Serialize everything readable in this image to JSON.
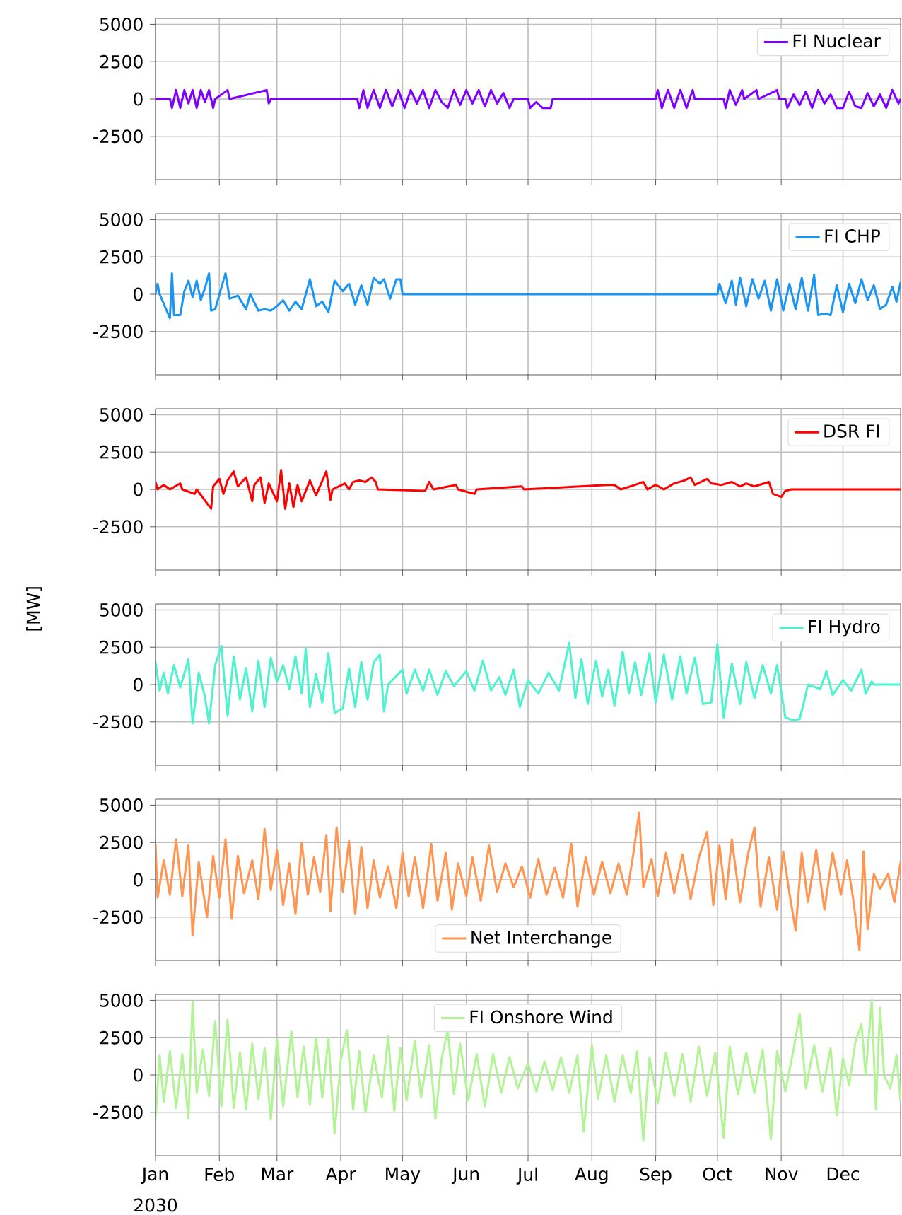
{
  "chart_data": [
    {
      "type": "line",
      "xlim": [
        "2030-01-01",
        "2030-12-29"
      ],
      "ylim": [
        -5400,
        5400
      ],
      "yticks": [
        -2500,
        0,
        2500,
        5000
      ],
      "grid": true,
      "legend": "top right",
      "tick_labels": "y",
      "xticks": [
        "2030-01-01",
        "2030-02-01",
        "2030-03-01",
        "2030-04-01",
        "2030-05-01",
        "2030-06-01",
        "2030-07-01",
        "2030-08-01",
        "2030-09-01",
        "2030-10-01",
        "2030-11-01",
        "2030-12-01"
      ],
      "series": [
        {
          "name": "FI Nuclear",
          "color": "#8000ff",
          "x": [
            "2030-01-01",
            "2030-01-08",
            "2030-01-09",
            "2030-01-11",
            "2030-01-13",
            "2030-01-15",
            "2030-01-17",
            "2030-01-19",
            "2030-01-21",
            "2030-01-23",
            "2030-01-25",
            "2030-01-27",
            "2030-01-29",
            "2030-01-30",
            "2030-02-05",
            "2030-02-06",
            "2030-02-24",
            "2030-02-25",
            "2030-02-26",
            "2030-04-09",
            "2030-04-10",
            "2030-04-12",
            "2030-04-14",
            "2030-04-17",
            "2030-04-20",
            "2030-04-23",
            "2030-04-26",
            "2030-04-29",
            "2030-05-02",
            "2030-05-05",
            "2030-05-08",
            "2030-05-11",
            "2030-05-14",
            "2030-05-17",
            "2030-05-20",
            "2030-05-23",
            "2030-05-26",
            "2030-05-29",
            "2030-06-01",
            "2030-06-04",
            "2030-06-07",
            "2030-06-10",
            "2030-06-13",
            "2030-06-16",
            "2030-06-19",
            "2030-06-22",
            "2030-06-24",
            "2030-07-01",
            "2030-07-02",
            "2030-07-05",
            "2030-07-08",
            "2030-07-12",
            "2030-07-13",
            "2030-09-01",
            "2030-09-02",
            "2030-09-04",
            "2030-09-07",
            "2030-09-10",
            "2030-09-13",
            "2030-09-16",
            "2030-09-19",
            "2030-09-20",
            "2030-10-04",
            "2030-10-05",
            "2030-10-07",
            "2030-10-10",
            "2030-10-13",
            "2030-10-14",
            "2030-10-20",
            "2030-10-21",
            "2030-10-30",
            "2030-10-31",
            "2030-11-03",
            "2030-11-04",
            "2030-11-07",
            "2030-11-10",
            "2030-11-13",
            "2030-11-16",
            "2030-11-19",
            "2030-11-22",
            "2030-11-25",
            "2030-11-28",
            "2030-12-01",
            "2030-12-04",
            "2030-12-07",
            "2030-12-10",
            "2030-12-13",
            "2030-12-16",
            "2030-12-19",
            "2030-12-22",
            "2030-12-25",
            "2030-12-28",
            "2030-12-29"
          ],
          "values": [
            0,
            0,
            -600,
            600,
            -600,
            600,
            -300,
            600,
            -600,
            600,
            -200,
            600,
            -600,
            0,
            600,
            0,
            600,
            -300,
            0,
            0,
            -600,
            600,
            -600,
            600,
            -600,
            600,
            -500,
            600,
            -600,
            600,
            -300,
            600,
            -600,
            600,
            -200,
            -600,
            600,
            -400,
            600,
            -300,
            600,
            -500,
            600,
            -300,
            400,
            -600,
            0,
            0,
            -600,
            -200,
            -600,
            -600,
            0,
            0,
            600,
            -600,
            600,
            -600,
            600,
            -600,
            600,
            0,
            0,
            -600,
            600,
            -400,
            600,
            0,
            600,
            0,
            600,
            0,
            0,
            -600,
            300,
            -400,
            500,
            -600,
            600,
            -300,
            300,
            -600,
            -600,
            500,
            -500,
            -600,
            400,
            -500,
            300,
            -600,
            600,
            -300,
            0
          ]
        }
      ]
    },
    {
      "type": "line",
      "xlim": [
        "2030-01-01",
        "2030-12-29"
      ],
      "ylim": [
        -5400,
        5400
      ],
      "yticks": [
        -2500,
        0,
        2500,
        5000
      ],
      "grid": true,
      "legend": "top right",
      "tick_labels": "y",
      "xticks": [
        "2030-01-01",
        "2030-02-01",
        "2030-03-01",
        "2030-04-01",
        "2030-05-01",
        "2030-06-01",
        "2030-07-01",
        "2030-08-01",
        "2030-09-01",
        "2030-10-01",
        "2030-11-01",
        "2030-12-01"
      ],
      "series": [
        {
          "name": "FI CHP",
          "color": "#1996f3",
          "x": [
            "2030-01-01",
            "2030-01-02",
            "2030-01-03",
            "2030-01-08",
            "2030-01-09",
            "2030-01-10",
            "2030-01-13",
            "2030-01-15",
            "2030-01-17",
            "2030-01-19",
            "2030-01-21",
            "2030-01-23",
            "2030-01-25",
            "2030-01-27",
            "2030-01-28",
            "2030-01-30",
            "2030-02-04",
            "2030-02-06",
            "2030-02-10",
            "2030-02-14",
            "2030-02-16",
            "2030-02-20",
            "2030-02-23",
            "2030-02-26",
            "2030-03-01",
            "2030-03-04",
            "2030-03-07",
            "2030-03-10",
            "2030-03-13",
            "2030-03-17",
            "2030-03-20",
            "2030-03-23",
            "2030-03-26",
            "2030-03-29",
            "2030-04-02",
            "2030-04-05",
            "2030-04-08",
            "2030-04-11",
            "2030-04-14",
            "2030-04-17",
            "2030-04-20",
            "2030-04-22",
            "2030-04-25",
            "2030-04-28",
            "2030-04-30",
            "2030-05-01",
            "2030-10-01",
            "2030-10-02",
            "2030-10-05",
            "2030-10-08",
            "2030-10-10",
            "2030-10-12",
            "2030-10-15",
            "2030-10-18",
            "2030-10-21",
            "2030-10-24",
            "2030-10-27",
            "2030-10-30",
            "2030-11-02",
            "2030-11-05",
            "2030-11-08",
            "2030-11-11",
            "2030-11-14",
            "2030-11-17",
            "2030-11-19",
            "2030-11-22",
            "2030-11-25",
            "2030-11-28",
            "2030-12-01",
            "2030-12-04",
            "2030-12-07",
            "2030-12-10",
            "2030-12-13",
            "2030-12-16",
            "2030-12-19",
            "2030-12-22",
            "2030-12-25",
            "2030-12-27",
            "2030-12-29"
          ],
          "values": [
            0,
            700,
            0,
            -1600,
            1400,
            -1400,
            -1400,
            200,
            900,
            -200,
            900,
            -400,
            400,
            1400,
            -1100,
            -1000,
            1400,
            -300,
            -100,
            -1000,
            0,
            -1100,
            -1000,
            -1100,
            -800,
            -400,
            -1100,
            -500,
            -1000,
            1000,
            -800,
            -500,
            -1200,
            900,
            200,
            700,
            -700,
            600,
            -700,
            1100,
            700,
            1000,
            -300,
            1000,
            1000,
            0,
            0,
            700,
            -600,
            900,
            -700,
            1100,
            -800,
            1000,
            -300,
            900,
            -1100,
            1000,
            -1100,
            700,
            -1000,
            1100,
            -1100,
            1300,
            -1400,
            -1300,
            -1400,
            600,
            -1200,
            700,
            -600,
            1000,
            -400,
            600,
            -1000,
            -700,
            500,
            -500,
            800
          ]
        }
      ]
    },
    {
      "type": "line",
      "xlim": [
        "2030-01-01",
        "2030-12-29"
      ],
      "ylim": [
        -5400,
        5400
      ],
      "yticks": [
        -2500,
        0,
        2500,
        5000
      ],
      "grid": true,
      "legend": "top right",
      "tick_labels": "y",
      "xticks": [
        "2030-01-01",
        "2030-02-01",
        "2030-03-01",
        "2030-04-01",
        "2030-05-01",
        "2030-06-01",
        "2030-07-01",
        "2030-08-01",
        "2030-09-01",
        "2030-10-01",
        "2030-11-01",
        "2030-12-01"
      ],
      "series": [
        {
          "name": "DSR FI",
          "color": "#ff0000",
          "x": [
            "2030-01-01",
            "2030-01-02",
            "2030-01-05",
            "2030-01-08",
            "2030-01-13",
            "2030-01-14",
            "2030-01-20",
            "2030-01-21",
            "2030-01-28",
            "2030-01-29",
            "2030-02-01",
            "2030-02-03",
            "2030-02-05",
            "2030-02-08",
            "2030-02-10",
            "2030-02-14",
            "2030-02-17",
            "2030-02-18",
            "2030-02-21",
            "2030-02-23",
            "2030-02-25",
            "2030-03-01",
            "2030-03-03",
            "2030-03-05",
            "2030-03-07",
            "2030-03-09",
            "2030-03-11",
            "2030-03-13",
            "2030-03-17",
            "2030-03-20",
            "2030-03-25",
            "2030-03-27",
            "2030-03-28",
            "2030-04-03",
            "2030-04-05",
            "2030-04-07",
            "2030-04-10",
            "2030-04-13",
            "2030-04-16",
            "2030-04-18",
            "2030-04-19",
            "2030-05-12",
            "2030-05-14",
            "2030-05-16",
            "2030-05-27",
            "2030-05-28",
            "2030-06-05",
            "2030-06-06",
            "2030-06-28",
            "2030-06-29",
            "2030-08-08",
            "2030-08-12",
            "2030-08-15",
            "2030-08-22",
            "2030-08-26",
            "2030-08-28",
            "2030-09-01",
            "2030-09-05",
            "2030-09-10",
            "2030-09-15",
            "2030-09-18",
            "2030-09-20",
            "2030-09-26",
            "2030-09-28",
            "2030-10-03",
            "2030-10-08",
            "2030-10-12",
            "2030-10-15",
            "2030-10-19",
            "2030-10-26",
            "2030-10-28",
            "2030-11-01",
            "2030-11-03",
            "2030-11-06",
            "2030-12-29"
          ],
          "values": [
            500,
            0,
            300,
            0,
            400,
            0,
            -300,
            0,
            -1300,
            200,
            700,
            -300,
            600,
            1200,
            200,
            800,
            -800,
            300,
            800,
            -900,
            400,
            -800,
            1300,
            -1300,
            400,
            -1200,
            300,
            -800,
            600,
            -400,
            1200,
            -700,
            0,
            400,
            0,
            500,
            600,
            500,
            800,
            500,
            0,
            -100,
            500,
            0,
            300,
            0,
            -300,
            0,
            200,
            0,
            300,
            300,
            0,
            300,
            500,
            0,
            300,
            0,
            400,
            600,
            800,
            300,
            700,
            400,
            300,
            500,
            200,
            400,
            200,
            500,
            -300,
            -500,
            -100,
            0,
            0
          ]
        }
      ]
    },
    {
      "type": "line",
      "xlim": [
        "2030-01-01",
        "2030-12-29"
      ],
      "ylim": [
        -5400,
        5400
      ],
      "yticks": [
        -2500,
        0,
        2500,
        5000
      ],
      "grid": true,
      "legend": "top right",
      "tick_labels": "y",
      "ylabel": "[MW]",
      "xticks": [
        "2030-01-01",
        "2030-02-01",
        "2030-03-01",
        "2030-04-01",
        "2030-05-01",
        "2030-06-01",
        "2030-07-01",
        "2030-08-01",
        "2030-09-01",
        "2030-10-01",
        "2030-11-01",
        "2030-12-01"
      ],
      "series": [
        {
          "name": "FI Hydro",
          "color": "#4df3ce",
          "x": [
            "2030-01-01",
            "2030-01-03",
            "2030-01-05",
            "2030-01-07",
            "2030-01-10",
            "2030-01-13",
            "2030-01-17",
            "2030-01-19",
            "2030-01-22",
            "2030-01-25",
            "2030-01-27",
            "2030-01-30",
            "2030-02-02",
            "2030-02-05",
            "2030-02-08",
            "2030-02-11",
            "2030-02-14",
            "2030-02-17",
            "2030-02-20",
            "2030-02-23",
            "2030-02-26",
            "2030-03-01",
            "2030-03-04",
            "2030-03-07",
            "2030-03-10",
            "2030-03-13",
            "2030-03-15",
            "2030-03-17",
            "2030-03-20",
            "2030-03-23",
            "2030-03-26",
            "2030-03-29",
            "2030-04-02",
            "2030-04-05",
            "2030-04-08",
            "2030-04-11",
            "2030-04-14",
            "2030-04-17",
            "2030-04-20",
            "2030-04-22",
            "2030-04-24",
            "2030-05-01",
            "2030-05-03",
            "2030-05-07",
            "2030-05-11",
            "2030-05-14",
            "2030-05-18",
            "2030-05-22",
            "2030-05-26",
            "2030-06-01",
            "2030-06-05",
            "2030-06-09",
            "2030-06-13",
            "2030-06-17",
            "2030-06-20",
            "2030-06-24",
            "2030-06-27",
            "2030-07-01",
            "2030-07-06",
            "2030-07-11",
            "2030-07-16",
            "2030-07-21",
            "2030-07-24",
            "2030-07-27",
            "2030-07-30",
            "2030-08-03",
            "2030-08-06",
            "2030-08-09",
            "2030-08-12",
            "2030-08-16",
            "2030-08-19",
            "2030-08-22",
            "2030-08-25",
            "2030-08-29",
            "2030-09-01",
            "2030-09-05",
            "2030-09-09",
            "2030-09-13",
            "2030-09-16",
            "2030-09-20",
            "2030-09-24",
            "2030-09-28",
            "2030-10-01",
            "2030-10-04",
            "2030-10-08",
            "2030-10-12",
            "2030-10-15",
            "2030-10-19",
            "2030-10-23",
            "2030-10-27",
            "2030-10-30",
            "2030-11-03",
            "2030-11-07",
            "2030-11-10",
            "2030-11-12",
            "2030-11-14",
            "2030-11-20",
            "2030-11-23",
            "2030-11-26",
            "2030-12-01",
            "2030-12-05",
            "2030-12-10",
            "2030-12-12",
            "2030-12-15",
            "2030-12-16",
            "2030-12-29"
          ],
          "values": [
            1500,
            -400,
            800,
            -600,
            1300,
            -200,
            1700,
            -2600,
            800,
            -800,
            -2600,
            1300,
            2600,
            -2100,
            1900,
            -1000,
            1100,
            -1800,
            1600,
            -1500,
            1800,
            200,
            1300,
            -300,
            1900,
            -600,
            2400,
            -1500,
            700,
            -1200,
            2100,
            -1900,
            -1600,
            1100,
            -1500,
            1500,
            -1000,
            1500,
            2000,
            -1800,
            0,
            1000,
            -600,
            1000,
            -400,
            1000,
            -700,
            900,
            -100,
            900,
            -400,
            1600,
            -400,
            500,
            -700,
            1000,
            -1500,
            300,
            -600,
            800,
            -400,
            2800,
            -900,
            1700,
            -1300,
            1600,
            -800,
            1000,
            -1400,
            2200,
            -600,
            1500,
            -700,
            2100,
            -1200,
            2000,
            -1000,
            1900,
            -600,
            1800,
            -1300,
            -1200,
            2700,
            -2200,
            1400,
            -1300,
            1500,
            -900,
            1300,
            -600,
            1300,
            -2200,
            -2400,
            -2300,
            -1200,
            0,
            -300,
            900,
            -700,
            300,
            -400,
            1000,
            -600,
            200,
            0,
            0
          ]
        }
      ]
    },
    {
      "type": "line",
      "xlim": [
        "2030-01-01",
        "2030-12-29"
      ],
      "ylim": [
        -5400,
        5400
      ],
      "yticks": [
        -2500,
        0,
        2500,
        5000
      ],
      "grid": true,
      "legend": "bottom",
      "tick_labels": "y",
      "xticks": [
        "2030-01-01",
        "2030-02-01",
        "2030-03-01",
        "2030-04-01",
        "2030-05-01",
        "2030-06-01",
        "2030-07-01",
        "2030-08-01",
        "2030-09-01",
        "2030-10-01",
        "2030-11-01",
        "2030-12-01"
      ],
      "series": [
        {
          "name": "Net Interchange",
          "color": "#ff9550",
          "x": [
            "2030-01-01",
            "2030-01-02",
            "2030-01-05",
            "2030-01-08",
            "2030-01-11",
            "2030-01-14",
            "2030-01-17",
            "2030-01-19",
            "2030-01-22",
            "2030-01-26",
            "2030-01-29",
            "2030-02-01",
            "2030-02-04",
            "2030-02-07",
            "2030-02-10",
            "2030-02-13",
            "2030-02-17",
            "2030-02-20",
            "2030-02-23",
            "2030-02-26",
            "2030-03-01",
            "2030-03-04",
            "2030-03-07",
            "2030-03-10",
            "2030-03-13",
            "2030-03-16",
            "2030-03-19",
            "2030-03-22",
            "2030-03-25",
            "2030-03-27",
            "2030-03-30",
            "2030-04-02",
            "2030-04-05",
            "2030-04-08",
            "2030-04-11",
            "2030-04-14",
            "2030-04-17",
            "2030-04-20",
            "2030-04-24",
            "2030-04-28",
            "2030-05-01",
            "2030-05-04",
            "2030-05-07",
            "2030-05-11",
            "2030-05-15",
            "2030-05-18",
            "2030-05-22",
            "2030-05-25",
            "2030-05-28",
            "2030-06-01",
            "2030-06-04",
            "2030-06-08",
            "2030-06-12",
            "2030-06-16",
            "2030-06-20",
            "2030-06-24",
            "2030-06-28",
            "2030-07-02",
            "2030-07-06",
            "2030-07-10",
            "2030-07-14",
            "2030-07-18",
            "2030-07-22",
            "2030-07-25",
            "2030-07-29",
            "2030-08-02",
            "2030-08-06",
            "2030-08-10",
            "2030-08-14",
            "2030-08-18",
            "2030-08-21",
            "2030-08-24",
            "2030-08-26",
            "2030-08-30",
            "2030-09-02",
            "2030-09-06",
            "2030-09-10",
            "2030-09-14",
            "2030-09-18",
            "2030-09-22",
            "2030-09-26",
            "2030-09-29",
            "2030-10-02",
            "2030-10-05",
            "2030-10-08",
            "2030-10-12",
            "2030-10-16",
            "2030-10-19",
            "2030-10-22",
            "2030-10-26",
            "2030-10-30",
            "2030-11-02",
            "2030-11-05",
            "2030-11-08",
            "2030-11-11",
            "2030-11-14",
            "2030-11-18",
            "2030-11-22",
            "2030-11-26",
            "2030-11-30",
            "2030-12-03",
            "2030-12-06",
            "2030-12-09",
            "2030-12-11",
            "2030-12-13",
            "2030-12-16",
            "2030-12-19",
            "2030-12-23",
            "2030-12-26",
            "2030-12-29"
          ],
          "values": [
            2400,
            -1200,
            1300,
            -1000,
            2700,
            -1100,
            2300,
            -3700,
            1200,
            -2500,
            1600,
            -1200,
            2700,
            -2600,
            1600,
            -900,
            1300,
            -1300,
            3400,
            -700,
            2000,
            -1700,
            1100,
            -2300,
            2500,
            -1000,
            1500,
            -800,
            3000,
            -2100,
            3500,
            -800,
            2600,
            -2300,
            2200,
            -1900,
            1300,
            -1200,
            900,
            -1900,
            1800,
            -1100,
            1500,
            -1900,
            2400,
            -1400,
            1800,
            -2000,
            1100,
            -1100,
            1500,
            -1400,
            2300,
            -800,
            1100,
            -500,
            900,
            -1200,
            1400,
            -1000,
            800,
            -1200,
            2400,
            -1800,
            1500,
            -1000,
            1200,
            -900,
            1100,
            -1000,
            1600,
            4500,
            -500,
            1400,
            -1100,
            1800,
            -900,
            1700,
            -1300,
            1500,
            3200,
            -1700,
            2300,
            -1300,
            2700,
            -1500,
            1800,
            3500,
            -1800,
            1500,
            -2000,
            1900,
            -900,
            -3400,
            1800,
            -1500,
            2000,
            -2000,
            1800,
            -1000,
            1300,
            -1300,
            -4700,
            1900,
            -3300,
            400,
            -600,
            400,
            -1500,
            1200
          ]
        }
      ]
    },
    {
      "type": "line",
      "xlim": [
        "2030-01-01",
        "2030-12-29"
      ],
      "ylim": [
        -5400,
        5400
      ],
      "yticks": [
        -2500,
        0,
        2500,
        5000
      ],
      "grid": true,
      "legend": "top",
      "annotations": [
        "2030"
      ],
      "xticks": [
        {
          "value": "2030-01-01",
          "label": "Jan"
        },
        {
          "value": "2030-02-01",
          "label": "Feb"
        },
        {
          "value": "2030-03-01",
          "label": "Mar"
        },
        {
          "value": "2030-04-01",
          "label": "Apr"
        },
        {
          "value": "2030-05-01",
          "label": "May"
        },
        {
          "value": "2030-06-01",
          "label": "Jun"
        },
        {
          "value": "2030-07-01",
          "label": "Jul"
        },
        {
          "value": "2030-08-01",
          "label": "Aug"
        },
        {
          "value": "2030-09-01",
          "label": "Sep"
        },
        {
          "value": "2030-10-01",
          "label": "Oct"
        },
        {
          "value": "2030-11-01",
          "label": "Nov"
        },
        {
          "value": "2030-12-01",
          "label": "Dec"
        }
      ],
      "series": [
        {
          "name": "FI Onshore Wind",
          "color": "#b2f396",
          "x": [
            "2030-01-01",
            "2030-01-03",
            "2030-01-05",
            "2030-01-08",
            "2030-01-11",
            "2030-01-14",
            "2030-01-17",
            "2030-01-19",
            "2030-01-21",
            "2030-01-24",
            "2030-01-27",
            "2030-01-30",
            "2030-02-02",
            "2030-02-05",
            "2030-02-08",
            "2030-02-11",
            "2030-02-14",
            "2030-02-17",
            "2030-02-20",
            "2030-02-23",
            "2030-02-26",
            "2030-03-01",
            "2030-03-04",
            "2030-03-08",
            "2030-03-11",
            "2030-03-14",
            "2030-03-17",
            "2030-03-20",
            "2030-03-23",
            "2030-03-26",
            "2030-03-29",
            "2030-04-01",
            "2030-04-04",
            "2030-04-07",
            "2030-04-10",
            "2030-04-13",
            "2030-04-17",
            "2030-04-21",
            "2030-04-24",
            "2030-04-27",
            "2030-04-30",
            "2030-05-03",
            "2030-05-07",
            "2030-05-10",
            "2030-05-14",
            "2030-05-17",
            "2030-05-20",
            "2030-05-23",
            "2030-05-26",
            "2030-05-29",
            "2030-06-02",
            "2030-06-06",
            "2030-06-10",
            "2030-06-14",
            "2030-06-18",
            "2030-06-22",
            "2030-06-26",
            "2030-07-01",
            "2030-07-05",
            "2030-07-09",
            "2030-07-13",
            "2030-07-17",
            "2030-07-21",
            "2030-07-25",
            "2030-07-28",
            "2030-08-01",
            "2030-08-04",
            "2030-08-08",
            "2030-08-12",
            "2030-08-16",
            "2030-08-20",
            "2030-08-23",
            "2030-08-26",
            "2030-08-29",
            "2030-09-02",
            "2030-09-06",
            "2030-09-10",
            "2030-09-14",
            "2030-09-18",
            "2030-09-22",
            "2030-09-26",
            "2030-09-30",
            "2030-10-04",
            "2030-10-07",
            "2030-10-11",
            "2030-10-15",
            "2030-10-19",
            "2030-10-23",
            "2030-10-27",
            "2030-10-30",
            "2030-11-03",
            "2030-11-07",
            "2030-11-10",
            "2030-11-13",
            "2030-11-17",
            "2030-11-21",
            "2030-11-25",
            "2030-11-28",
            "2030-12-01",
            "2030-12-04",
            "2030-12-07",
            "2030-12-10",
            "2030-12-12",
            "2030-12-15",
            "2030-12-17",
            "2030-12-19",
            "2030-12-21",
            "2030-12-24",
            "2030-12-27",
            "2030-12-29"
          ],
          "values": [
            -2900,
            1300,
            -1800,
            1600,
            -2200,
            1400,
            -2900,
            4900,
            -1200,
            1700,
            -1400,
            3600,
            -2100,
            3700,
            -2200,
            1500,
            -2300,
            2100,
            -1600,
            1800,
            -3000,
            2400,
            -2100,
            2900,
            -1500,
            1900,
            -2000,
            2500,
            -1500,
            2500,
            -3900,
            1000,
            3000,
            -2300,
            1600,
            -2500,
            1300,
            -1500,
            2600,
            -2400,
            1800,
            -1700,
            2300,
            -1500,
            2000,
            -2900,
            1100,
            3000,
            -1300,
            2100,
            -1700,
            1400,
            -2100,
            1400,
            -1200,
            1200,
            -900,
            800,
            -1100,
            900,
            -1000,
            1200,
            -1200,
            1300,
            -3800,
            2000,
            -1600,
            1300,
            -1800,
            1300,
            -1200,
            1600,
            -4400,
            1200,
            -1900,
            1500,
            -1400,
            1400,
            -1800,
            1900,
            -1400,
            1500,
            -4200,
            1900,
            -1300,
            1500,
            -1200,
            1700,
            -4300,
            1600,
            -1100,
            1700,
            4100,
            -900,
            2000,
            -1100,
            1800,
            -2700,
            1100,
            -700,
            2200,
            3400,
            0,
            5000,
            -2300,
            4500,
            0,
            -900,
            1300,
            -1800
          ]
        }
      ]
    }
  ]
}
